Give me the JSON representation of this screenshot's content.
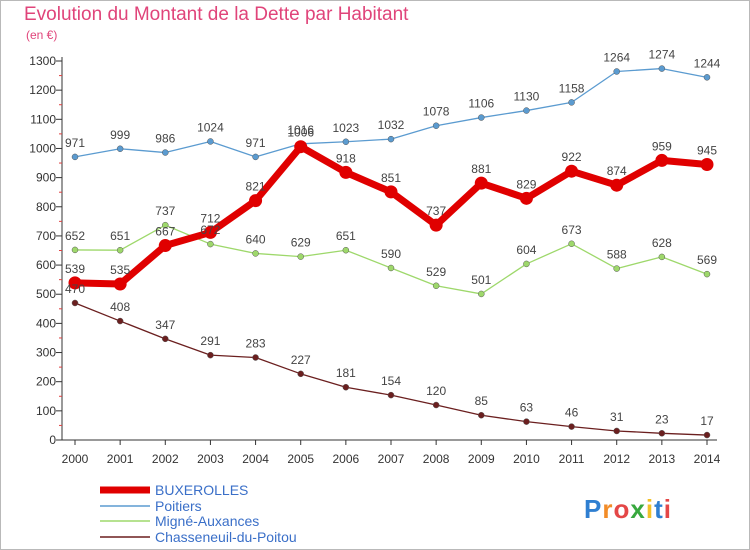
{
  "title": "Evolution du Montant de la Dette par Habitant",
  "subtitle": "(en €)",
  "logo_text": "Proxiti",
  "chart_data": {
    "type": "line",
    "x": [
      "2000",
      "2001",
      "2002",
      "2003",
      "2004",
      "2005",
      "2006",
      "2007",
      "2008",
      "2009",
      "2010",
      "2011",
      "2012",
      "2013",
      "2014"
    ],
    "ylim": [
      0,
      1300
    ],
    "yticks": [
      0,
      100,
      200,
      300,
      400,
      500,
      600,
      700,
      800,
      900,
      1000,
      1100,
      1200,
      1300
    ],
    "grid": false,
    "legend_position": "bottom-left",
    "series": [
      {
        "name": "BUXEROLLES",
        "color": "#e00000",
        "values": [
          539,
          535,
          667,
          712,
          821,
          1006,
          918,
          851,
          737,
          881,
          829,
          922,
          874,
          959,
          945
        ]
      },
      {
        "name": "Poitiers",
        "color": "#5b9bd0",
        "values": [
          971,
          999,
          986,
          1024,
          971,
          1016,
          1023,
          1032,
          1078,
          1106,
          1130,
          1158,
          1264,
          1274,
          1244
        ]
      },
      {
        "name": "Migné-Auxances",
        "color": "#9ed86b",
        "values": [
          652,
          651,
          737,
          672,
          640,
          629,
          651,
          590,
          529,
          501,
          604,
          673,
          588,
          628,
          569
        ]
      },
      {
        "name": "Chasseneuil-du-Poitou",
        "color": "#6b1f1f",
        "values": [
          470,
          408,
          347,
          291,
          283,
          227,
          181,
          154,
          120,
          85,
          63,
          46,
          31,
          23,
          17
        ]
      }
    ]
  }
}
